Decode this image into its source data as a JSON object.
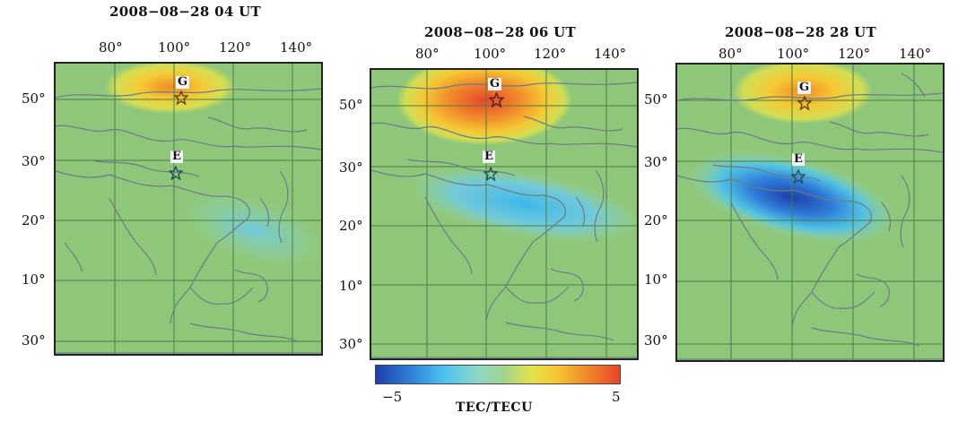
{
  "panels": [
    {
      "title": "2008−08−28 04 UT",
      "lon_labels": [
        "80°",
        "100°",
        "120°",
        "140°"
      ],
      "lat_labels": [
        "50°",
        "30°",
        "20°",
        "10°",
        "30°"
      ],
      "markers": {
        "g": "G",
        "e": "E"
      }
    },
    {
      "title": "2008−08−28 06 UT",
      "lon_labels": [
        "80°",
        "100°",
        "120°",
        "140°"
      ],
      "lat_labels": [
        "50°",
        "30°",
        "20°",
        "10°",
        "30°"
      ],
      "markers": {
        "g": "G",
        "e": "E"
      }
    },
    {
      "title": "2008−08−28 28 UT",
      "lon_labels": [
        "80°",
        "100°",
        "120°",
        "140°"
      ],
      "lat_labels": [
        "50°",
        "30°",
        "20°",
        "10°",
        "30°"
      ],
      "markers": {
        "g": "G",
        "e": "E"
      }
    }
  ],
  "colorbar": {
    "min_label": "−5",
    "max_label": "5",
    "label": "TEC/TECU",
    "colors": [
      "#1e3faa",
      "#2f7fd9",
      "#4cc2ee",
      "#8fd7c6",
      "#9fd38f",
      "#e3e24a",
      "#f6c733",
      "#f08a2a",
      "#e8452b"
    ]
  },
  "colors": {
    "land": "#8fc77a",
    "grid": "#4a7d44",
    "coast": "#6a7c8a",
    "positive_anomaly": "#e8452b",
    "negative_anomaly": "#1e3faa"
  }
}
